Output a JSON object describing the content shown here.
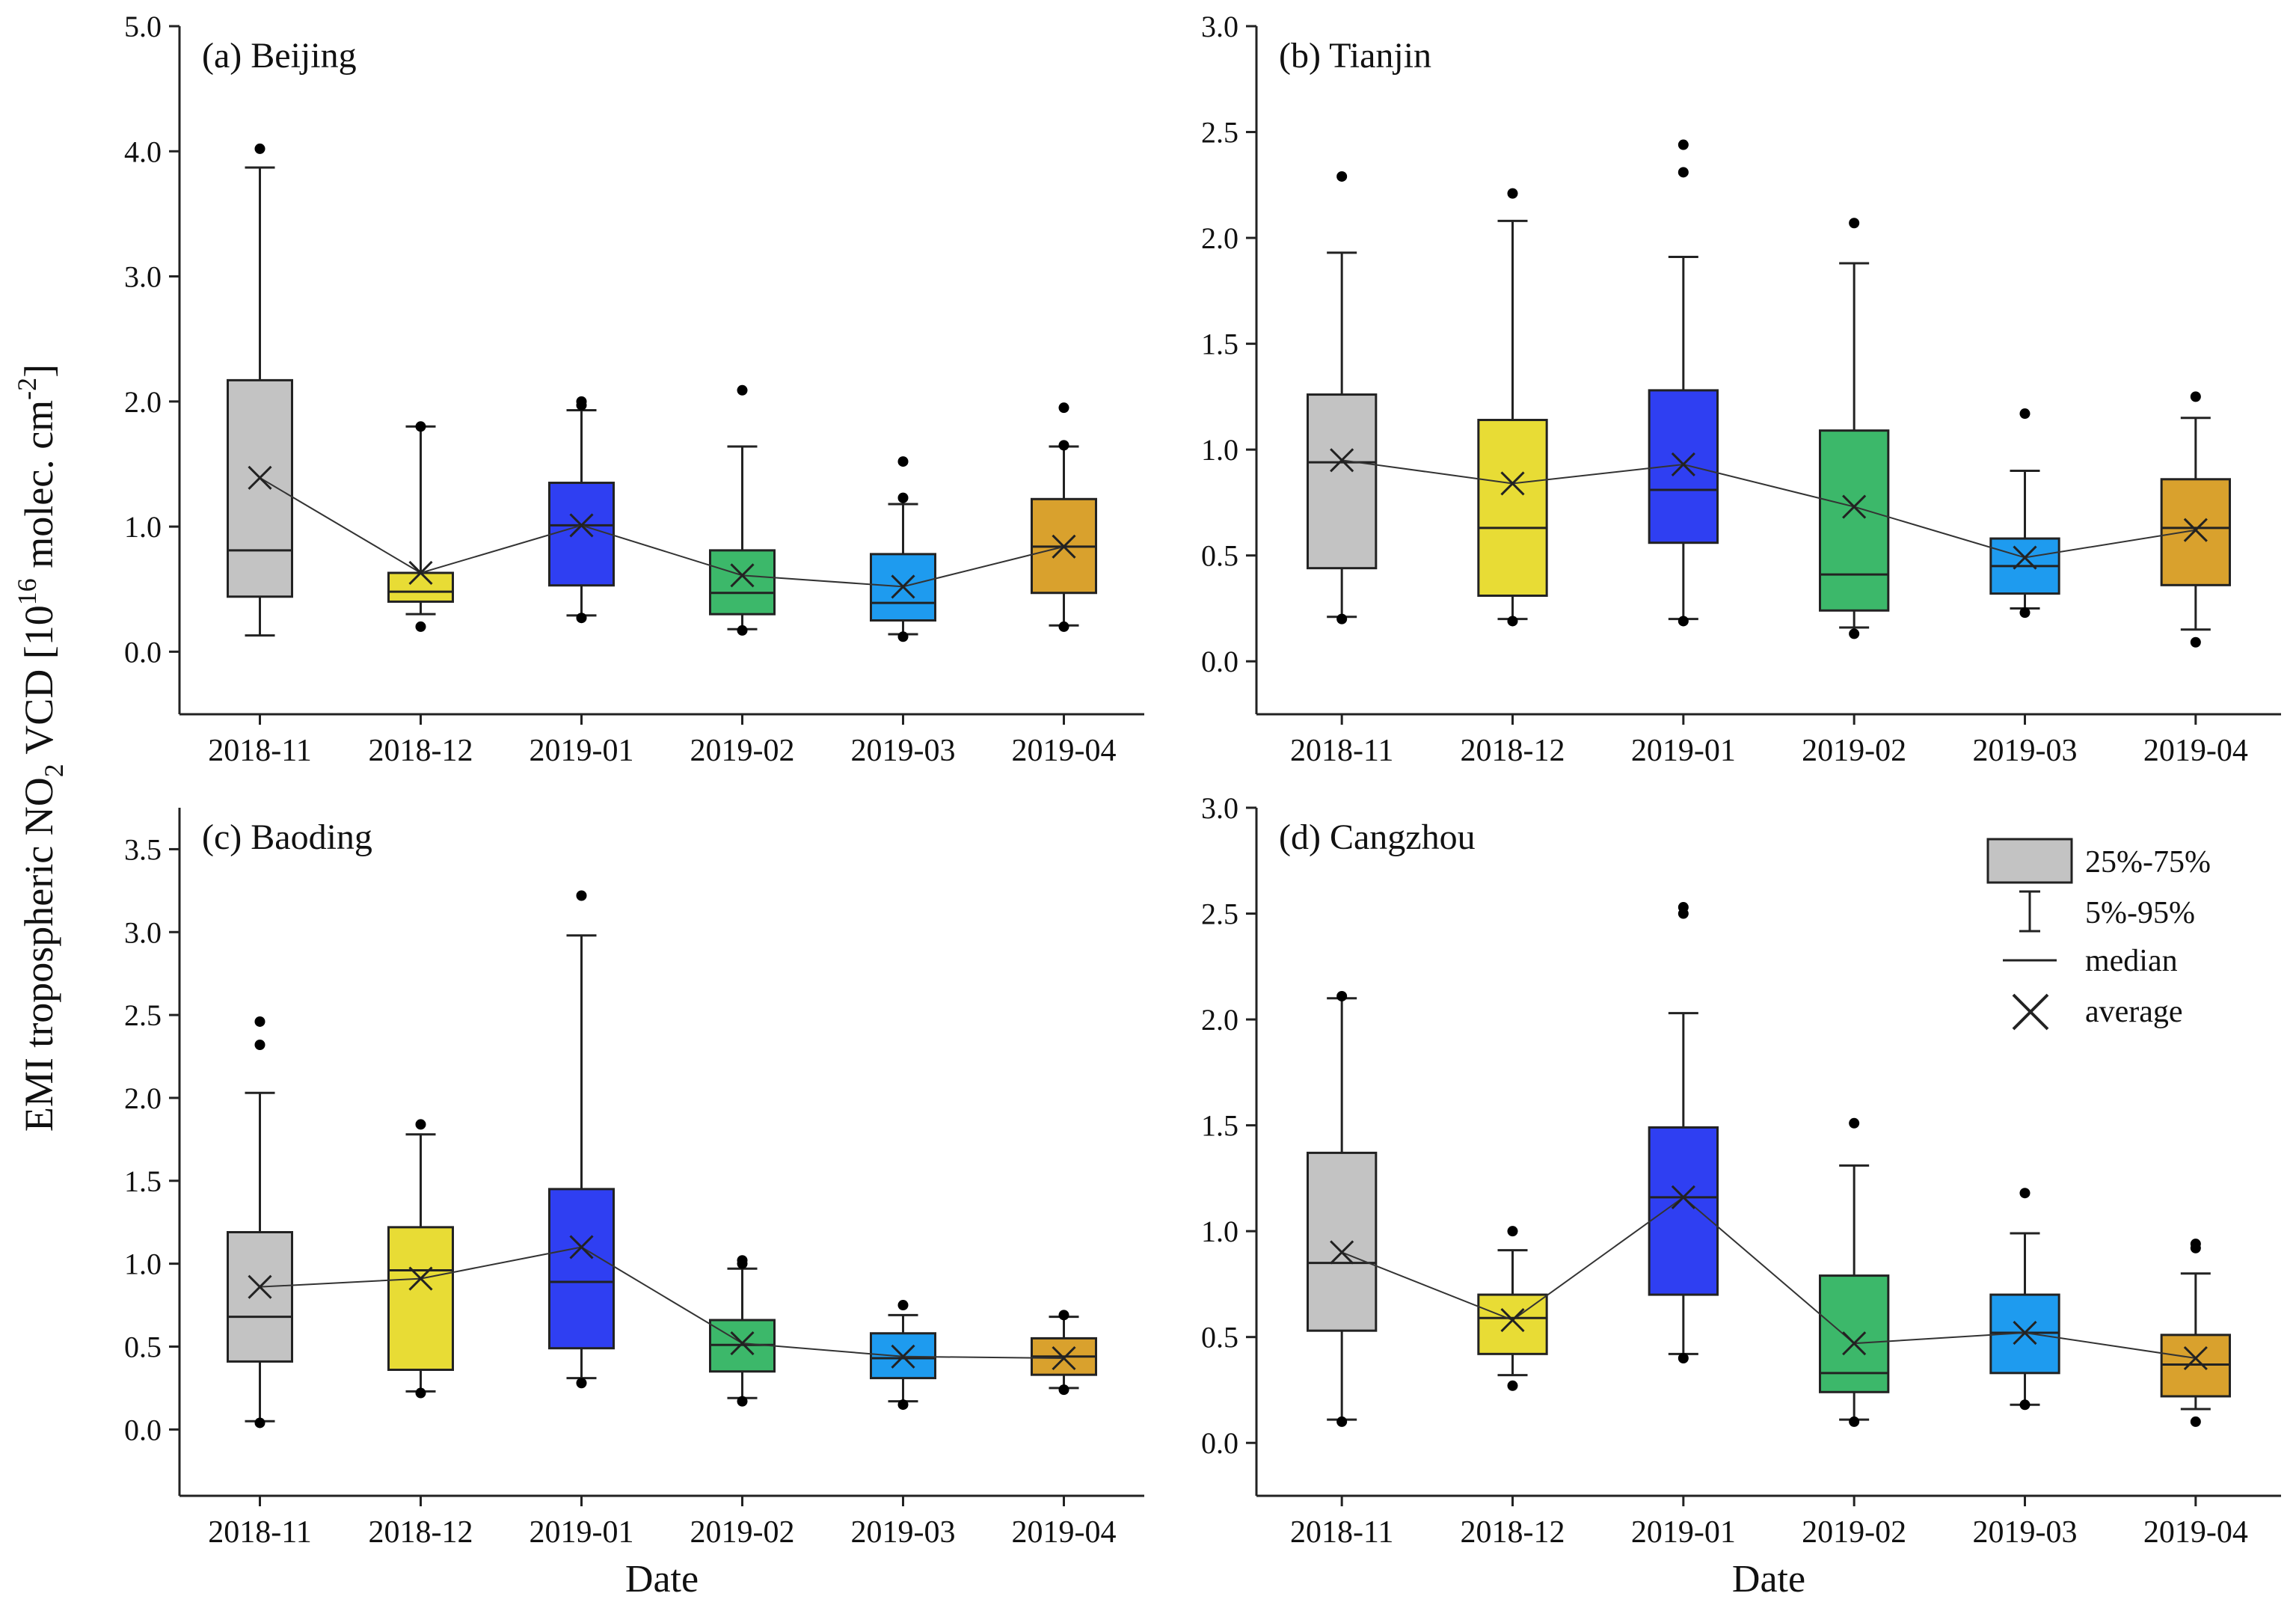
{
  "figure": {
    "ylabel_main": "EMI tropospheric NO",
    "ylabel_sub": "2",
    "ylabel_mid": " VCD [10",
    "ylabel_sup1": "16",
    "ylabel_mid2": " molec. cm",
    "ylabel_sup2": "-2",
    "ylabel_end": "]"
  },
  "legend": {
    "box_label": "25%-75%",
    "whisker_label": "5%-95%",
    "median_label": "median",
    "average_label": "average"
  },
  "colors": {
    "2018-11": "#c3c3c3",
    "2018-12": "#e8dc35",
    "2019-01": "#2f3ff2",
    "2019-02": "#3cb86a",
    "2019-03": "#1e9bef",
    "2019-04": "#d9a12d"
  },
  "chart_data": [
    {
      "type": "box",
      "title": "(a) Beijing",
      "xlabel": "",
      "categories": [
        "2018-11",
        "2018-12",
        "2019-01",
        "2019-02",
        "2019-03",
        "2019-04"
      ],
      "ylim": [
        -0.5,
        5.0
      ],
      "yticks": [
        0.0,
        1.0,
        2.0,
        3.0,
        4.0,
        5.0
      ],
      "ytick_labels": [
        "0.0",
        "1.0",
        "2.0",
        "3.0",
        "4.0",
        "5.0"
      ],
      "boxes": [
        {
          "q1": 0.44,
          "q3": 2.17,
          "median": 0.81,
          "mean": 1.39,
          "p5": 0.13,
          "p95": 3.87,
          "outliers": [
            4.02
          ]
        },
        {
          "q1": 0.4,
          "q3": 0.63,
          "median": 0.48,
          "mean": 0.63,
          "p5": 0.3,
          "p95": 1.8,
          "outliers": [
            1.8,
            0.2
          ]
        },
        {
          "q1": 0.53,
          "q3": 1.35,
          "median": 1.01,
          "mean": 1.01,
          "p5": 0.29,
          "p95": 1.93,
          "outliers": [
            1.97,
            2.0,
            0.27
          ]
        },
        {
          "q1": 0.3,
          "q3": 0.81,
          "median": 0.47,
          "mean": 0.61,
          "p5": 0.18,
          "p95": 1.64,
          "outliers": [
            2.09,
            0.17
          ]
        },
        {
          "q1": 0.25,
          "q3": 0.78,
          "median": 0.39,
          "mean": 0.52,
          "p5": 0.14,
          "p95": 1.18,
          "outliers": [
            1.23,
            1.52,
            0.12
          ]
        },
        {
          "q1": 0.47,
          "q3": 1.22,
          "median": 0.84,
          "mean": 0.84,
          "p5": 0.21,
          "p95": 1.64,
          "outliers": [
            1.65,
            1.95,
            0.2
          ]
        }
      ]
    },
    {
      "type": "box",
      "title": "(b) Tianjin",
      "xlabel": "",
      "categories": [
        "2018-11",
        "2018-12",
        "2019-01",
        "2019-02",
        "2019-03",
        "2019-04"
      ],
      "ylim": [
        -0.25,
        3.0
      ],
      "yticks": [
        0.0,
        0.5,
        1.0,
        1.5,
        2.0,
        2.5,
        3.0
      ],
      "ytick_labels": [
        "0.0",
        "0.5",
        "1.0",
        "1.5",
        "2.0",
        "2.5",
        "3.0"
      ],
      "boxes": [
        {
          "q1": 0.44,
          "q3": 1.26,
          "median": 0.94,
          "mean": 0.95,
          "p5": 0.21,
          "p95": 1.93,
          "outliers": [
            2.29,
            0.2
          ]
        },
        {
          "q1": 0.31,
          "q3": 1.14,
          "median": 0.63,
          "mean": 0.84,
          "p5": 0.2,
          "p95": 2.08,
          "outliers": [
            2.21,
            0.19
          ]
        },
        {
          "q1": 0.56,
          "q3": 1.28,
          "median": 0.81,
          "mean": 0.93,
          "p5": 0.2,
          "p95": 1.91,
          "outliers": [
            2.31,
            2.44,
            0.19
          ]
        },
        {
          "q1": 0.24,
          "q3": 1.09,
          "median": 0.41,
          "mean": 0.73,
          "p5": 0.16,
          "p95": 1.88,
          "outliers": [
            2.07,
            0.13
          ]
        },
        {
          "q1": 0.32,
          "q3": 0.58,
          "median": 0.45,
          "mean": 0.49,
          "p5": 0.25,
          "p95": 0.9,
          "outliers": [
            1.17,
            0.23
          ]
        },
        {
          "q1": 0.36,
          "q3": 0.86,
          "median": 0.63,
          "mean": 0.62,
          "p5": 0.15,
          "p95": 1.15,
          "outliers": [
            1.25,
            0.09
          ]
        }
      ]
    },
    {
      "type": "box",
      "title": "(c) Baoding",
      "xlabel": "Date",
      "categories": [
        "2018-11",
        "2018-12",
        "2019-01",
        "2019-02",
        "2019-03",
        "2019-04"
      ],
      "ylim": [
        -0.4,
        3.75
      ],
      "yticks": [
        0.0,
        0.5,
        1.0,
        1.5,
        2.0,
        2.5,
        3.0,
        3.5
      ],
      "ytick_labels": [
        "0.0",
        "0.5",
        "1.0",
        "1.5",
        "2.0",
        "2.5",
        "3.0",
        "3.5"
      ],
      "boxes": [
        {
          "q1": 0.41,
          "q3": 1.19,
          "median": 0.68,
          "mean": 0.86,
          "p5": 0.05,
          "p95": 2.03,
          "outliers": [
            2.32,
            2.46,
            0.04
          ]
        },
        {
          "q1": 0.36,
          "q3": 1.22,
          "median": 0.96,
          "mean": 0.91,
          "p5": 0.23,
          "p95": 1.78,
          "outliers": [
            1.84,
            0.22
          ]
        },
        {
          "q1": 0.49,
          "q3": 1.45,
          "median": 0.89,
          "mean": 1.1,
          "p5": 0.31,
          "p95": 2.98,
          "outliers": [
            3.22,
            0.28
          ]
        },
        {
          "q1": 0.35,
          "q3": 0.66,
          "median": 0.51,
          "mean": 0.52,
          "p5": 0.19,
          "p95": 0.97,
          "outliers": [
            1.0,
            1.02,
            0.17
          ]
        },
        {
          "q1": 0.31,
          "q3": 0.58,
          "median": 0.43,
          "mean": 0.44,
          "p5": 0.17,
          "p95": 0.69,
          "outliers": [
            0.75,
            0.15
          ]
        },
        {
          "q1": 0.33,
          "q3": 0.55,
          "median": 0.44,
          "mean": 0.43,
          "p5": 0.25,
          "p95": 0.68,
          "outliers": [
            0.69,
            0.24
          ]
        }
      ]
    },
    {
      "type": "box",
      "title": "(d) Cangzhou",
      "xlabel": "Date",
      "categories": [
        "2018-11",
        "2018-12",
        "2019-01",
        "2019-02",
        "2019-03",
        "2019-04"
      ],
      "ylim": [
        -0.25,
        3.0
      ],
      "yticks": [
        0.0,
        0.5,
        1.0,
        1.5,
        2.0,
        2.5,
        3.0
      ],
      "ytick_labels": [
        "0.0",
        "0.5",
        "1.0",
        "1.5",
        "2.0",
        "2.5",
        "3.0"
      ],
      "boxes": [
        {
          "q1": 0.53,
          "q3": 1.37,
          "median": 0.85,
          "mean": 0.9,
          "p5": 0.11,
          "p95": 2.1,
          "outliers": [
            2.11,
            0.1
          ]
        },
        {
          "q1": 0.42,
          "q3": 0.7,
          "median": 0.59,
          "mean": 0.58,
          "p5": 0.32,
          "p95": 0.91,
          "outliers": [
            1.0,
            0.27
          ]
        },
        {
          "q1": 0.7,
          "q3": 1.49,
          "median": 1.16,
          "mean": 1.16,
          "p5": 0.42,
          "p95": 2.03,
          "outliers": [
            2.5,
            2.53,
            0.4
          ]
        },
        {
          "q1": 0.24,
          "q3": 0.79,
          "median": 0.33,
          "mean": 0.47,
          "p5": 0.11,
          "p95": 1.31,
          "outliers": [
            1.51,
            0.1
          ]
        },
        {
          "q1": 0.33,
          "q3": 0.7,
          "median": 0.52,
          "mean": 0.52,
          "p5": 0.18,
          "p95": 0.99,
          "outliers": [
            1.18,
            0.18
          ]
        },
        {
          "q1": 0.22,
          "q3": 0.51,
          "median": 0.37,
          "mean": 0.4,
          "p5": 0.16,
          "p95": 0.8,
          "outliers": [
            0.92,
            0.94,
            0.1
          ]
        }
      ]
    }
  ]
}
